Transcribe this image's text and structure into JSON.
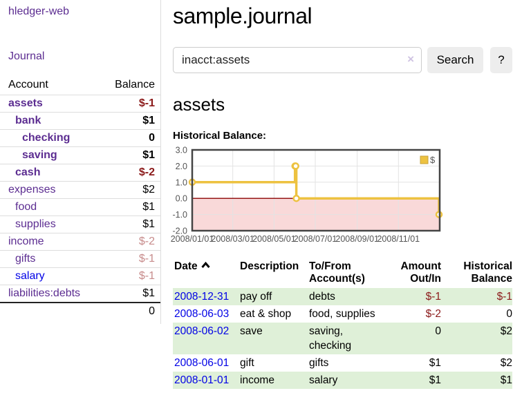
{
  "app": {
    "title": "hledger-web"
  },
  "sidebar": {
    "journal_label": "Journal",
    "accounts_table": {
      "headers": {
        "account": "Account",
        "balance": "Balance"
      },
      "rows": [
        {
          "account": "assets",
          "balance": "$-1",
          "depth": 1,
          "bold": true,
          "link": "purple",
          "balance_style": "neg"
        },
        {
          "account": "bank",
          "balance": "$1",
          "depth": 2,
          "bold": true,
          "link": "purple",
          "balance_style": ""
        },
        {
          "account": "checking",
          "balance": "0",
          "depth": 3,
          "bold": true,
          "link": "purple",
          "balance_style": ""
        },
        {
          "account": "saving",
          "balance": "$1",
          "depth": 3,
          "bold": true,
          "link": "purple",
          "balance_style": ""
        },
        {
          "account": "cash",
          "balance": "$-2",
          "depth": 2,
          "bold": true,
          "link": "purple",
          "balance_style": "neg"
        },
        {
          "account": "expenses",
          "balance": "$2",
          "depth": 1,
          "bold": false,
          "link": "purple",
          "balance_style": ""
        },
        {
          "account": "food",
          "balance": "$1",
          "depth": 2,
          "bold": false,
          "link": "purple",
          "balance_style": ""
        },
        {
          "account": "supplies",
          "balance": "$1",
          "depth": 2,
          "bold": false,
          "link": "purple",
          "balance_style": ""
        },
        {
          "account": "income",
          "balance": "$-2",
          "depth": 1,
          "bold": false,
          "link": "purple",
          "balance_style": "negfaint"
        },
        {
          "account": "gifts",
          "balance": "$-1",
          "depth": 2,
          "bold": false,
          "link": "purple",
          "balance_style": "negfaint"
        },
        {
          "account": "salary",
          "balance": "$-1",
          "depth": 2,
          "bold": false,
          "link": "blue",
          "balance_style": "negfaint"
        },
        {
          "account": "liabilities:debts",
          "balance": "$1",
          "depth": 1,
          "bold": false,
          "link": "purple",
          "balance_style": ""
        }
      ],
      "total": "0"
    }
  },
  "main": {
    "title": "sample.journal",
    "search": {
      "value": "inacct:assets",
      "clear_icon": "×",
      "button_label": "Search",
      "help_label": "?"
    },
    "account_heading": "assets",
    "register_table": {
      "headers": [
        "Date",
        "Description",
        "To/From Account(s)",
        "Amount Out/In",
        "Historical Balance"
      ],
      "rows": [
        {
          "date": "2008-12-31",
          "description": "pay off",
          "accounts": "debts",
          "amount": "$-1",
          "amount_style": "neg",
          "balance": "$-1",
          "balance_style": "neg"
        },
        {
          "date": "2008-06-03",
          "description": "eat & shop",
          "accounts": "food, supplies",
          "amount": "$-2",
          "amount_style": "neg",
          "balance": "0",
          "balance_style": ""
        },
        {
          "date": "2008-06-02",
          "description": "save",
          "accounts": "saving, checking",
          "amount": "0",
          "amount_style": "",
          "balance": "$2",
          "balance_style": ""
        },
        {
          "date": "2008-06-01",
          "description": "gift",
          "accounts": "gifts",
          "amount": "$1",
          "amount_style": "",
          "balance": "$2",
          "balance_style": ""
        },
        {
          "date": "2008-01-01",
          "description": "income",
          "accounts": "salary",
          "amount": "$1",
          "amount_style": "",
          "balance": "$1",
          "balance_style": ""
        }
      ]
    }
  },
  "chart_data": {
    "type": "line",
    "title": "Historical Balance:",
    "step": true,
    "series": [
      {
        "name": "$",
        "color": "#edc240",
        "points": [
          [
            "2008-01-01",
            1
          ],
          [
            "2008-06-01",
            2
          ],
          [
            "2008-06-02",
            2
          ],
          [
            "2008-06-03",
            0
          ],
          [
            "2008-12-31",
            -1
          ]
        ]
      }
    ],
    "x_range": [
      "2008-01-01",
      "2009-01-01"
    ],
    "ylim": [
      -2,
      3
    ],
    "y_ticks": [
      "3.0",
      "2.0",
      "1.0",
      "0.0",
      "-1.0",
      "-2.0"
    ],
    "x_ticks": [
      "2008/01/01",
      "2008/03/01",
      "2008/05/01",
      "2008/07/01",
      "2008/09/01",
      "2008/11/01"
    ],
    "legend_position": "top-right",
    "grid": true,
    "negative_region_color": "#f9d9d9",
    "zero_line_color": "#8b0000",
    "border_color": "#444444",
    "gridline_color": "#e3e3e3",
    "tick_label_color": "#545454"
  },
  "colors": {
    "link_purple": "#5c2d91",
    "link_blue": "#0000e6",
    "negative_strong": "#8b1a1a",
    "negative_faint": "#c78b8b",
    "row_stripe_green": "#dff0d8",
    "button_bg": "#ededed",
    "chart_gold": "#edc240"
  }
}
